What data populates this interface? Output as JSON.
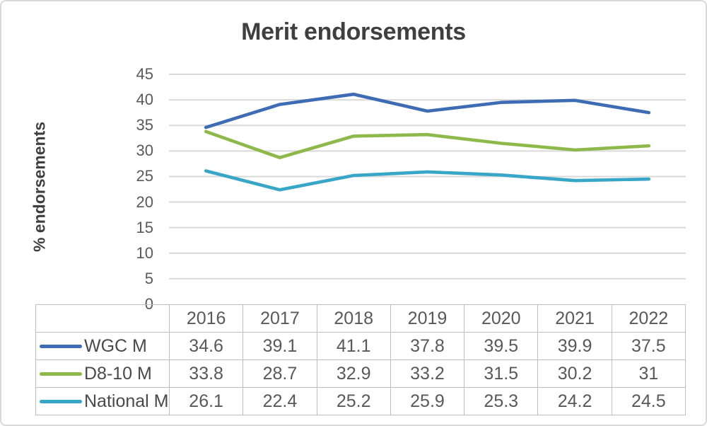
{
  "chart_data": {
    "type": "line",
    "title": "Merit endorsements",
    "xlabel": "",
    "ylabel": "% endorsements",
    "categories": [
      "2016",
      "2017",
      "2018",
      "2019",
      "2020",
      "2021",
      "2022"
    ],
    "series": [
      {
        "name": "WGC M",
        "color": "#3D6CB4",
        "values": [
          34.6,
          39.1,
          41.1,
          37.8,
          39.5,
          39.9,
          37.5
        ]
      },
      {
        "name": "D8-10 M",
        "color": "#8DB94A",
        "values": [
          33.8,
          28.7,
          32.9,
          33.2,
          31.5,
          30.2,
          31
        ]
      },
      {
        "name": "National M",
        "color": "#38A6C6",
        "values": [
          26.1,
          22.4,
          25.2,
          25.9,
          25.3,
          24.2,
          24.5
        ]
      }
    ],
    "ylim": [
      0,
      45
    ],
    "ytick_step": 5,
    "grid": true,
    "legend_position": "data-table-left",
    "data_table_shown": true
  },
  "colors": {
    "title_text": "#3F3F3F",
    "axis_text": "#595959",
    "table_text": "#595959",
    "gridline": "#D9D9D9",
    "table_border": "#BFBFBF",
    "chart_border": "#DADADA",
    "background": "#FFFFFF"
  }
}
